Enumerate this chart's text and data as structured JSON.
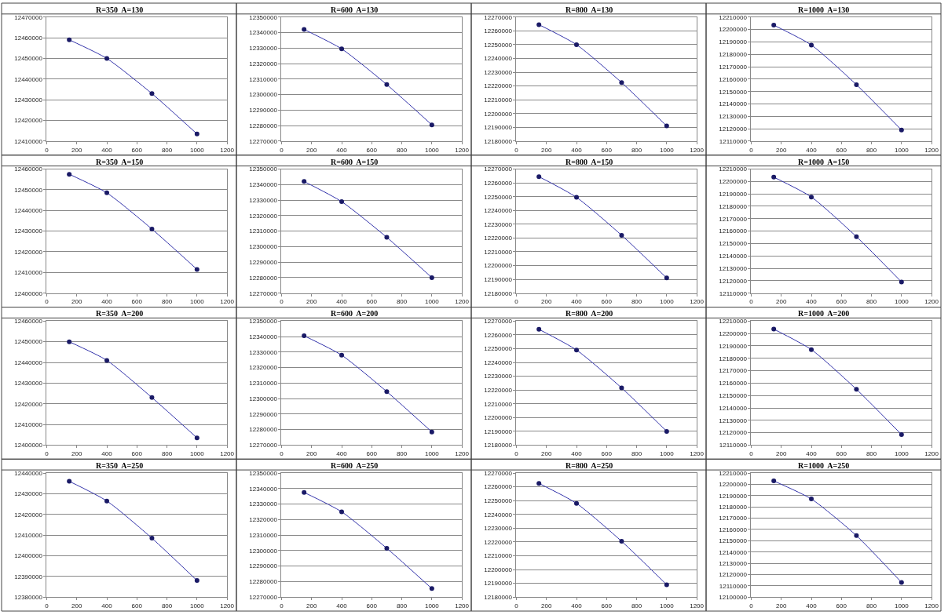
{
  "chart_data": [
    {
      "type": "line",
      "title": "R=350  A=130",
      "x": [
        150,
        400,
        700,
        1000
      ],
      "series": [
        {
          "color": "#3333aa",
          "values": [
            12459000,
            12450000,
            12433000,
            12413500
          ]
        }
      ],
      "xlim": [
        0,
        1200
      ],
      "xticks": [
        0,
        200,
        400,
        600,
        800,
        1000,
        1200
      ],
      "ylim": [
        12410000,
        12470000
      ],
      "yticks": [
        12410000,
        12420000,
        12430000,
        12440000,
        12450000,
        12460000,
        12470000
      ],
      "grid": "y",
      "marker": "circle"
    },
    {
      "type": "line",
      "title": "R=600  A=130",
      "x": [
        150,
        400,
        700,
        1000
      ],
      "series": [
        {
          "color": "#3333aa",
          "values": [
            12342000,
            12329500,
            12306500,
            12280500
          ]
        }
      ],
      "xlim": [
        0,
        1200
      ],
      "xticks": [
        0,
        200,
        400,
        600,
        800,
        1000,
        1200
      ],
      "ylim": [
        12270000,
        12350000
      ],
      "yticks": [
        12270000,
        12280000,
        12290000,
        12300000,
        12310000,
        12320000,
        12330000,
        12340000,
        12350000
      ],
      "grid": "y",
      "marker": "circle"
    },
    {
      "type": "line",
      "title": "R=800  A=130",
      "x": [
        150,
        400,
        700,
        1000
      ],
      "series": [
        {
          "color": "#3333aa",
          "values": [
            12264500,
            12250000,
            12222500,
            12191000
          ]
        }
      ],
      "xlim": [
        0,
        1200
      ],
      "xticks": [
        0,
        200,
        400,
        600,
        800,
        1000,
        1200
      ],
      "ylim": [
        12180000,
        12270000
      ],
      "yticks": [
        12180000,
        12190000,
        12200000,
        12210000,
        12220000,
        12230000,
        12240000,
        12250000,
        12260000,
        12270000
      ],
      "grid": "y",
      "marker": "circle"
    },
    {
      "type": "line",
      "title": "R=1000  A=130",
      "x": [
        150,
        400,
        700,
        1000
      ],
      "series": [
        {
          "color": "#3333aa",
          "values": [
            12203500,
            12187500,
            12155500,
            12119000
          ]
        }
      ],
      "xlim": [
        0,
        1200
      ],
      "xticks": [
        0,
        200,
        400,
        600,
        800,
        1000,
        1200
      ],
      "ylim": [
        12110000,
        12210000
      ],
      "yticks": [
        12110000,
        12120000,
        12130000,
        12140000,
        12150000,
        12160000,
        12170000,
        12180000,
        12190000,
        12200000,
        12210000
      ],
      "grid": "y",
      "marker": "circle"
    },
    {
      "type": "line",
      "title": "R=350  A=150",
      "x": [
        150,
        400,
        700,
        1000
      ],
      "series": [
        {
          "color": "#3333aa",
          "values": [
            12457500,
            12448500,
            12431000,
            12411500
          ]
        }
      ],
      "xlim": [
        0,
        1200
      ],
      "xticks": [
        0,
        200,
        400,
        600,
        800,
        1000,
        1200
      ],
      "ylim": [
        12400000,
        12460000
      ],
      "yticks": [
        12400000,
        12410000,
        12420000,
        12430000,
        12440000,
        12450000,
        12460000
      ],
      "grid": "y",
      "marker": "circle"
    },
    {
      "type": "line",
      "title": "R=600  A=150",
      "x": [
        150,
        400,
        700,
        1000
      ],
      "series": [
        {
          "color": "#3333aa",
          "values": [
            12342000,
            12329000,
            12306000,
            12280000
          ]
        }
      ],
      "xlim": [
        0,
        1200
      ],
      "xticks": [
        0,
        200,
        400,
        600,
        800,
        1000,
        1200
      ],
      "ylim": [
        12270000,
        12350000
      ],
      "yticks": [
        12270000,
        12280000,
        12290000,
        12300000,
        12310000,
        12320000,
        12330000,
        12340000,
        12350000
      ],
      "grid": "y",
      "marker": "circle"
    },
    {
      "type": "line",
      "title": "R=800  A=150",
      "x": [
        150,
        400,
        700,
        1000
      ],
      "series": [
        {
          "color": "#3333aa",
          "values": [
            12264500,
            12249500,
            12222000,
            12191000
          ]
        }
      ],
      "xlim": [
        0,
        1200
      ],
      "xticks": [
        0,
        200,
        400,
        600,
        800,
        1000,
        1200
      ],
      "ylim": [
        12180000,
        12270000
      ],
      "yticks": [
        12180000,
        12190000,
        12200000,
        12210000,
        12220000,
        12230000,
        12240000,
        12250000,
        12260000,
        12270000
      ],
      "grid": "y",
      "marker": "circle"
    },
    {
      "type": "line",
      "title": "R=1000  A=150",
      "x": [
        150,
        400,
        700,
        1000
      ],
      "series": [
        {
          "color": "#3333aa",
          "values": [
            12203500,
            12187500,
            12155500,
            12119000
          ]
        }
      ],
      "xlim": [
        0,
        1200
      ],
      "xticks": [
        0,
        200,
        400,
        600,
        800,
        1000,
        1200
      ],
      "ylim": [
        12110000,
        12210000
      ],
      "yticks": [
        12110000,
        12120000,
        12130000,
        12140000,
        12150000,
        12160000,
        12170000,
        12180000,
        12190000,
        12200000,
        12210000
      ],
      "grid": "y",
      "marker": "circle"
    },
    {
      "type": "line",
      "title": "R=350  A=200",
      "x": [
        150,
        400,
        700,
        1000
      ],
      "series": [
        {
          "color": "#3333aa",
          "values": [
            12450000,
            12441000,
            12423000,
            12403500
          ]
        }
      ],
      "xlim": [
        0,
        1200
      ],
      "xticks": [
        0,
        200,
        400,
        600,
        800,
        1000,
        1200
      ],
      "ylim": [
        12400000,
        12460000
      ],
      "yticks": [
        12400000,
        12410000,
        12420000,
        12430000,
        12440000,
        12450000,
        12460000
      ],
      "grid": "y",
      "marker": "circle"
    },
    {
      "type": "line",
      "title": "R=600  A=200",
      "x": [
        150,
        400,
        700,
        1000
      ],
      "series": [
        {
          "color": "#3333aa",
          "values": [
            12340500,
            12328000,
            12304500,
            12278500
          ]
        }
      ],
      "xlim": [
        0,
        1200
      ],
      "xticks": [
        0,
        200,
        400,
        600,
        800,
        1000,
        1200
      ],
      "ylim": [
        12270000,
        12350000
      ],
      "yticks": [
        12270000,
        12280000,
        12290000,
        12300000,
        12310000,
        12320000,
        12330000,
        12340000,
        12350000
      ],
      "grid": "y",
      "marker": "circle"
    },
    {
      "type": "line",
      "title": "R=800  A=200",
      "x": [
        150,
        400,
        700,
        1000
      ],
      "series": [
        {
          "color": "#3333aa",
          "values": [
            12264000,
            12249000,
            12221500,
            12190000
          ]
        }
      ],
      "xlim": [
        0,
        1200
      ],
      "xticks": [
        0,
        200,
        400,
        600,
        800,
        1000,
        1200
      ],
      "ylim": [
        12180000,
        12270000
      ],
      "yticks": [
        12180000,
        12190000,
        12200000,
        12210000,
        12220000,
        12230000,
        12240000,
        12250000,
        12260000,
        12270000
      ],
      "grid": "y",
      "marker": "circle"
    },
    {
      "type": "line",
      "title": "R=1000  A=200",
      "x": [
        150,
        400,
        700,
        1000
      ],
      "series": [
        {
          "color": "#3333aa",
          "values": [
            12203500,
            12187000,
            12155000,
            12118500
          ]
        }
      ],
      "xlim": [
        0,
        1200
      ],
      "xticks": [
        0,
        200,
        400,
        600,
        800,
        1000,
        1200
      ],
      "ylim": [
        12110000,
        12210000
      ],
      "yticks": [
        12110000,
        12120000,
        12130000,
        12140000,
        12150000,
        12160000,
        12170000,
        12180000,
        12190000,
        12200000,
        12210000
      ],
      "grid": "y",
      "marker": "circle"
    },
    {
      "type": "line",
      "title": "R=350  A=250",
      "x": [
        150,
        400,
        700,
        1000
      ],
      "series": [
        {
          "color": "#3333aa",
          "values": [
            12436000,
            12426500,
            12408500,
            12388000
          ]
        }
      ],
      "xlim": [
        0,
        1200
      ],
      "xticks": [
        0,
        200,
        400,
        600,
        800,
        1000,
        1200
      ],
      "ylim": [
        12380000,
        12440000
      ],
      "yticks": [
        12380000,
        12390000,
        12400000,
        12410000,
        12420000,
        12430000,
        12440000
      ],
      "grid": "y",
      "marker": "circle"
    },
    {
      "type": "line",
      "title": "R=600  A=250",
      "x": [
        150,
        400,
        700,
        1000
      ],
      "series": [
        {
          "color": "#3333aa",
          "values": [
            12337500,
            12325000,
            12301500,
            12275500
          ]
        }
      ],
      "xlim": [
        0,
        1200
      ],
      "xticks": [
        0,
        200,
        400,
        600,
        800,
        1000,
        1200
      ],
      "ylim": [
        12270000,
        12350000
      ],
      "yticks": [
        12270000,
        12280000,
        12290000,
        12300000,
        12310000,
        12320000,
        12330000,
        12340000,
        12350000
      ],
      "grid": "y",
      "marker": "circle"
    },
    {
      "type": "line",
      "title": "R=800  A=250",
      "x": [
        150,
        400,
        700,
        1000
      ],
      "series": [
        {
          "color": "#3333aa",
          "values": [
            12262500,
            12248000,
            12220500,
            12189000
          ]
        }
      ],
      "xlim": [
        0,
        1200
      ],
      "xticks": [
        0,
        200,
        400,
        600,
        800,
        1000,
        1200
      ],
      "ylim": [
        12180000,
        12270000
      ],
      "yticks": [
        12180000,
        12190000,
        12200000,
        12210000,
        12220000,
        12230000,
        12240000,
        12250000,
        12260000,
        12270000
      ],
      "grid": "y",
      "marker": "circle"
    },
    {
      "type": "line",
      "title": "R=1000  A=250",
      "x": [
        150,
        400,
        700,
        1000
      ],
      "series": [
        {
          "color": "#3333aa",
          "values": [
            12203000,
            12187000,
            12154500,
            12113000
          ]
        }
      ],
      "xlim": [
        0,
        1200
      ],
      "xticks": [
        0,
        200,
        400,
        600,
        800,
        1000,
        1200
      ],
      "ylim": [
        12100000,
        12210000
      ],
      "yticks": [
        12100000,
        12110000,
        12120000,
        12130000,
        12140000,
        12150000,
        12160000,
        12170000,
        12180000,
        12190000,
        12200000,
        12210000
      ],
      "grid": "y",
      "marker": "circle"
    }
  ]
}
